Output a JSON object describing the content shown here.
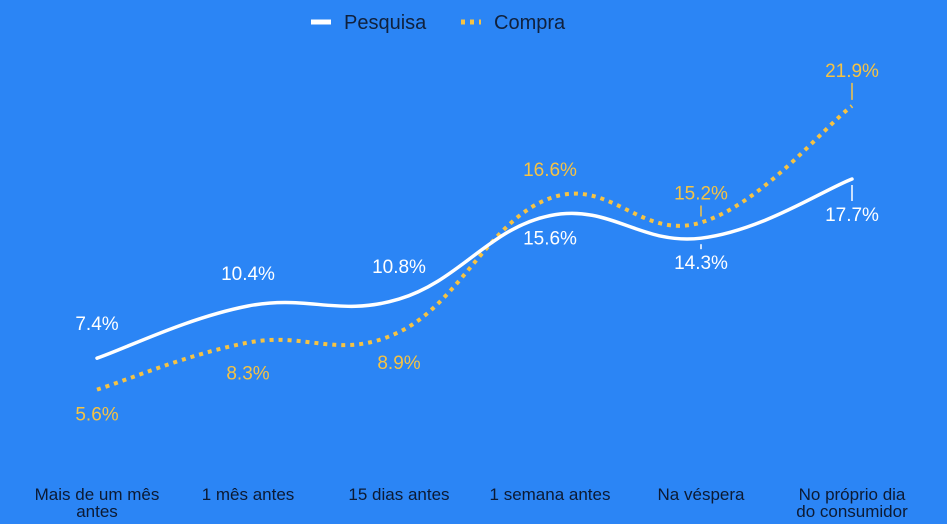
{
  "chart_data": {
    "type": "line",
    "categories": [
      [
        "Mais de um mês",
        "antes"
      ],
      [
        "1 mês antes"
      ],
      [
        "15 dias antes"
      ],
      [
        "1 semana antes"
      ],
      [
        "Na véspera"
      ],
      [
        "No próprio dia",
        "do consumidor"
      ]
    ],
    "series": [
      {
        "name": "Pesquisa",
        "values": [
          7.4,
          10.4,
          10.8,
          15.6,
          14.3,
          17.7
        ],
        "labels": [
          "7.4%",
          "10.4%",
          "10.8%",
          "15.6%",
          "14.3%",
          "17.7%"
        ],
        "color": "#ffffff",
        "style": "solid"
      },
      {
        "name": "Compra",
        "values": [
          5.6,
          8.3,
          8.9,
          16.6,
          15.2,
          21.9
        ],
        "labels": [
          "5.6%",
          "8.3%",
          "8.9%",
          "16.6%",
          "15.2%",
          "21.9%"
        ],
        "color": "#f6c343",
        "style": "dotted"
      }
    ],
    "legend_position": "top-center",
    "grid": false,
    "y_axis_visible": false,
    "smooth": true
  }
}
